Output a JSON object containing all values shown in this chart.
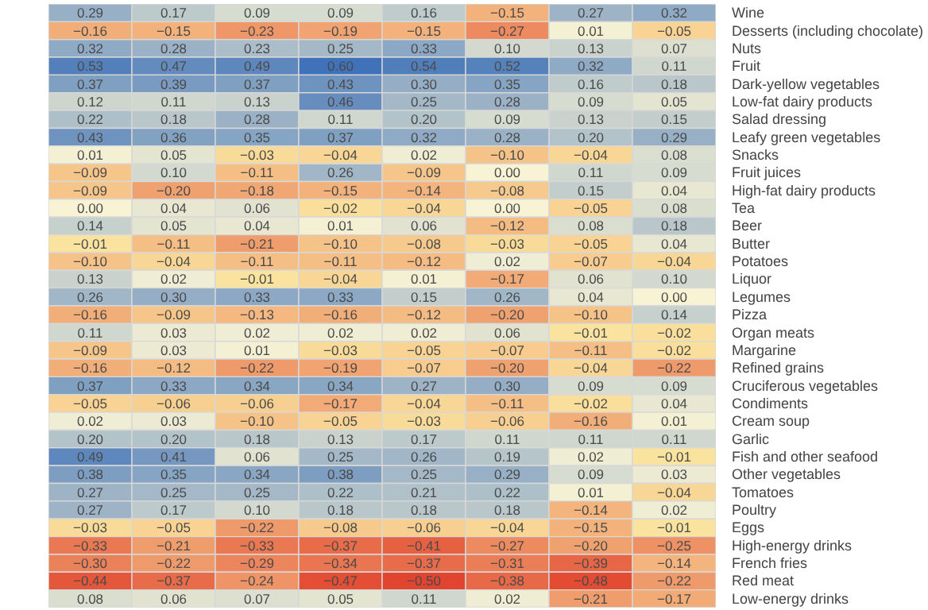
{
  "chart_data": {
    "type": "heatmap",
    "categories": [
      null,
      null,
      null,
      null,
      null,
      null,
      null,
      null
    ],
    "y_categories": [
      "Wine",
      "Desserts (including chocolate)",
      "Nuts",
      "Fruit",
      "Dark-yellow vegetables",
      "Low-fat dairy products",
      "Salad dressing",
      "Leafy green vegetables",
      "Snacks",
      "Fruit juices",
      "High-fat dairy products",
      "Tea",
      "Beer",
      "Butter",
      "Potatoes",
      "Liquor",
      "Legumes",
      "Pizza",
      "Organ meats",
      "Margarine",
      "Refined grains",
      "Cruciferous vegetables",
      "Condiments",
      "Cream soup",
      "Garlic",
      "Fish and other seafood",
      "Other vegetables",
      "Tomatoes",
      "Poultry",
      "Eggs",
      "High-energy drinks",
      "French fries",
      "Red meat",
      "Low-energy drinks"
    ],
    "cells": [
      [
        0.29,
        0.17,
        0.09,
        0.09,
        0.16,
        -0.15,
        0.27,
        0.32
      ],
      [
        -0.16,
        -0.15,
        -0.23,
        -0.19,
        -0.15,
        -0.27,
        0.01,
        -0.05
      ],
      [
        0.32,
        0.28,
        0.23,
        0.25,
        0.33,
        0.1,
        0.13,
        0.07
      ],
      [
        0.53,
        0.47,
        0.49,
        0.6,
        0.54,
        0.52,
        0.32,
        0.11
      ],
      [
        0.37,
        0.39,
        0.37,
        0.43,
        0.3,
        0.35,
        0.16,
        0.18
      ],
      [
        0.12,
        0.11,
        0.13,
        0.46,
        0.25,
        0.28,
        0.09,
        0.05
      ],
      [
        0.22,
        0.18,
        0.28,
        0.11,
        0.2,
        0.09,
        0.13,
        0.15
      ],
      [
        0.43,
        0.36,
        0.35,
        0.37,
        0.32,
        0.28,
        0.2,
        0.29
      ],
      [
        0.01,
        0.05,
        -0.03,
        -0.04,
        0.02,
        -0.1,
        -0.04,
        0.08
      ],
      [
        -0.09,
        0.1,
        -0.11,
        0.26,
        -0.09,
        0.0,
        0.11,
        0.09
      ],
      [
        -0.09,
        -0.2,
        -0.18,
        -0.15,
        -0.14,
        -0.08,
        0.15,
        0.04
      ],
      [
        0.0,
        0.04,
        0.06,
        -0.02,
        -0.04,
        0.0,
        -0.05,
        0.08
      ],
      [
        0.14,
        0.05,
        0.04,
        0.01,
        0.06,
        -0.12,
        0.08,
        0.18
      ],
      [
        -0.01,
        -0.11,
        -0.21,
        -0.1,
        -0.08,
        -0.03,
        -0.05,
        0.04
      ],
      [
        -0.1,
        -0.04,
        -0.11,
        -0.11,
        -0.12,
        0.02,
        -0.07,
        -0.04
      ],
      [
        0.13,
        0.02,
        -0.01,
        -0.04,
        0.01,
        -0.17,
        0.06,
        0.1
      ],
      [
        0.26,
        0.3,
        0.33,
        0.33,
        0.15,
        0.26,
        0.04,
        0.0
      ],
      [
        -0.16,
        -0.09,
        -0.13,
        -0.16,
        -0.12,
        -0.2,
        -0.1,
        0.14
      ],
      [
        0.11,
        0.03,
        0.02,
        0.02,
        0.02,
        0.06,
        -0.01,
        -0.02
      ],
      [
        -0.09,
        0.03,
        0.01,
        -0.03,
        -0.05,
        -0.07,
        -0.11,
        -0.02
      ],
      [
        -0.16,
        -0.12,
        -0.22,
        -0.19,
        -0.07,
        -0.2,
        -0.04,
        -0.22
      ],
      [
        0.37,
        0.33,
        0.34,
        0.34,
        0.27,
        0.3,
        0.09,
        0.09
      ],
      [
        -0.05,
        -0.06,
        -0.06,
        -0.17,
        -0.04,
        -0.11,
        -0.02,
        0.04
      ],
      [
        0.02,
        0.03,
        -0.1,
        -0.05,
        -0.03,
        -0.06,
        -0.16,
        0.01
      ],
      [
        0.2,
        0.2,
        0.18,
        0.13,
        0.17,
        0.11,
        0.11,
        0.11
      ],
      [
        0.49,
        0.41,
        0.06,
        0.25,
        0.26,
        0.19,
        0.02,
        -0.01
      ],
      [
        0.38,
        0.35,
        0.34,
        0.38,
        0.25,
        0.29,
        0.09,
        0.03
      ],
      [
        0.27,
        0.25,
        0.25,
        0.22,
        0.21,
        0.22,
        0.01,
        -0.04
      ],
      [
        0.27,
        0.17,
        0.1,
        0.18,
        0.18,
        0.18,
        -0.14,
        0.02
      ],
      [
        -0.03,
        -0.05,
        -0.22,
        -0.08,
        -0.06,
        -0.04,
        -0.15,
        -0.01
      ],
      [
        -0.33,
        -0.21,
        -0.33,
        -0.37,
        -0.41,
        -0.27,
        -0.2,
        -0.25
      ],
      [
        -0.3,
        -0.22,
        -0.29,
        -0.34,
        -0.37,
        -0.31,
        -0.39,
        -0.14
      ],
      [
        -0.44,
        -0.37,
        -0.24,
        -0.47,
        -0.5,
        -0.38,
        -0.48,
        -0.22
      ],
      [
        0.08,
        0.06,
        0.07,
        0.05,
        0.11,
        0.02,
        -0.21,
        -0.17
      ]
    ],
    "cell_labels": [
      [
        "0.29",
        "0.17",
        "0.09",
        "0.09",
        "0.16",
        "−0.15",
        "0.27",
        "0.32"
      ],
      [
        "−0.16",
        "−0.15",
        "−0.23",
        "−0.19",
        "−0.15",
        "−0.27",
        "0.01",
        "−0.05"
      ],
      [
        "0.32",
        "0.28",
        "0.23",
        "0.25",
        "0.33",
        "0.10",
        "0.13",
        "0.07"
      ],
      [
        "0.53",
        "0.47",
        "0.49",
        "0.60",
        "0.54",
        "0.52",
        "0.32",
        "0.11"
      ],
      [
        "0.37",
        "0.39",
        "0.37",
        "0.43",
        "0.30",
        "0.35",
        "0.16",
        "0.18"
      ],
      [
        "0.12",
        "0.11",
        "0.13",
        "0.46",
        "0.25",
        "0.28",
        "0.09",
        "0.05"
      ],
      [
        "0.22",
        "0.18",
        "0.28",
        "0.11",
        "0.20",
        "0.09",
        "0.13",
        "0.15"
      ],
      [
        "0.43",
        "0.36",
        "0.35",
        "0.37",
        "0.32",
        "0.28",
        "0.20",
        "0.29"
      ],
      [
        "0.01",
        "0.05",
        "−0.03",
        "−0.04",
        "0.02",
        "−0.10",
        "−0.04",
        "0.08"
      ],
      [
        "−0.09",
        "0.10",
        "−0.11",
        "0.26",
        "−0.09",
        "0.00",
        "0.11",
        "0.09"
      ],
      [
        "−0.09",
        "−0.20",
        "−0.18",
        "−0.15",
        "−0.14",
        "−0.08",
        "0.15",
        "0.04"
      ],
      [
        "0.00",
        "0.04",
        "0.06",
        "−0.02",
        "−0.04",
        "0.00",
        "−0.05",
        "0.08"
      ],
      [
        "0.14",
        "0.05",
        "0.04",
        "0.01",
        "0.06",
        "−0.12",
        "0.08",
        "0.18"
      ],
      [
        "−0.01",
        "−0.11",
        "−0.21",
        "−0.10",
        "−0.08",
        "−0.03",
        "−0.05",
        "0.04"
      ],
      [
        "−0.10",
        "−0.04",
        "−0.11",
        "−0.11",
        "−0.12",
        "0.02",
        "−0.07",
        "−0.04"
      ],
      [
        "0.13",
        "0.02",
        "−0.01",
        "−0.04",
        "0.01",
        "−0.17",
        "0.06",
        "0.10"
      ],
      [
        "0.26",
        "0.30",
        "0.33",
        "0.33",
        "0.15",
        "0.26",
        "0.04",
        "0.00"
      ],
      [
        "−0.16",
        "−0.09",
        "−0.13",
        "−0.16",
        "−0.12",
        "−0.20",
        "−0.10",
        "0.14"
      ],
      [
        "0.11",
        "0.03",
        "0.02",
        "0.02",
        "0.02",
        "0.06",
        "−0.01",
        "−0.02"
      ],
      [
        "−0.09",
        "0.03",
        "0.01",
        "−0.03",
        "−0.05",
        "−0.07",
        "−0.11",
        "−0.02"
      ],
      [
        "−0.16",
        "−0.12",
        "−0.22",
        "−0.19",
        "−0.07",
        "−0.20",
        "−0.04",
        "−0.22"
      ],
      [
        "0.37",
        "0.33",
        "0.34",
        "0.34",
        "0.27",
        "0.30",
        "0.09",
        "0.09"
      ],
      [
        "−0.05",
        "−0.06",
        "−0.06",
        "−0.17",
        "−0.04",
        "−0.11",
        "−0.02",
        "0.04"
      ],
      [
        "0.02",
        "0.03",
        "−0.10",
        "−0.05",
        "−0.03",
        "−0.06",
        "−0.16",
        "0.01"
      ],
      [
        "0.20",
        "0.20",
        "0.18",
        "0.13",
        "0.17",
        "0.11",
        "0.11",
        "0.11"
      ],
      [
        "0.49",
        "0.41",
        "0.06",
        "0.25",
        "0.26",
        "0.19",
        "0.02",
        "−0.01"
      ],
      [
        "0.38",
        "0.35",
        "0.34",
        "0.38",
        "0.25",
        "0.29",
        "0.09",
        "0.03"
      ],
      [
        "0.27",
        "0.25",
        "0.25",
        "0.22",
        "0.21",
        "0.22",
        "0.01",
        "−0.04"
      ],
      [
        "0.27",
        "0.17",
        "0.10",
        "0.18",
        "0.18",
        "0.18",
        "−0.14",
        "0.02"
      ],
      [
        "−0.03",
        "−0.05",
        "−0.22",
        "−0.08",
        "−0.06",
        "−0.04",
        "−0.15",
        "−0.01"
      ],
      [
        "−0.33",
        "−0.21",
        "−0.33",
        "−0.37",
        "−0.41",
        "−0.27",
        "−0.20",
        "−0.25"
      ],
      [
        "−0.30",
        "−0.22",
        "−0.29",
        "−0.34",
        "−0.37",
        "−0.31",
        "−0.39",
        "−0.14"
      ],
      [
        "−0.44",
        "−0.37",
        "−0.24",
        "−0.47",
        "−0.50",
        "−0.38",
        "−0.48",
        "−0.22"
      ],
      [
        "0.08",
        "0.06",
        "0.07",
        "0.05",
        "0.11",
        "0.02",
        "−0.21",
        "−0.17"
      ]
    ]
  }
}
